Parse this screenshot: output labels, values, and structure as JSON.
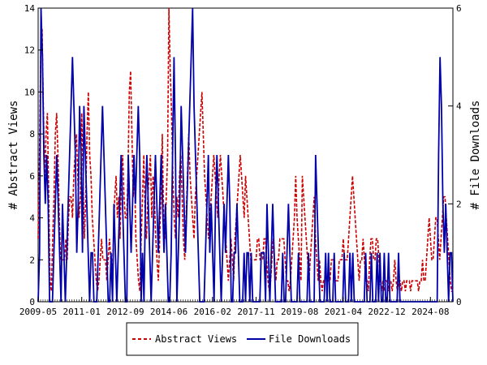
{
  "chart_data": {
    "type": "line",
    "title": "",
    "x_tick_labels": [
      "2009-05",
      "2011-01",
      "2012-09",
      "2014-06",
      "2016-02",
      "2017-11",
      "2019-08",
      "2021-04",
      "2022-12",
      "2024-08"
    ],
    "y_left": {
      "label": "# Abstract Views",
      "ylim": [
        0,
        14
      ],
      "ticks": [
        "0",
        "2",
        "4",
        "6",
        "8",
        "10",
        "12",
        "14"
      ]
    },
    "y_right": {
      "label": "# File Downloads",
      "ylim": [
        0,
        6
      ],
      "ticks": [
        "0",
        "2",
        "4",
        "6"
      ]
    },
    "legend": {
      "placement": "bottom-center"
    },
    "series": [
      {
        "name": "Abstract Views",
        "axis": "left",
        "color": "#cc0000",
        "style": "dashed",
        "values": [
          3,
          7,
          12,
          13,
          9,
          6,
          8,
          9,
          5,
          1,
          0.5,
          3,
          5,
          8,
          9,
          7,
          4,
          2,
          2,
          2,
          2,
          3,
          2,
          4,
          5,
          5,
          4,
          6,
          7,
          8,
          6,
          4,
          5,
          9,
          6,
          3,
          5,
          8,
          10,
          7,
          6,
          4,
          3,
          2,
          1,
          0.5,
          1,
          2,
          3,
          2,
          2,
          2,
          1,
          2,
          3,
          2,
          1,
          3,
          5,
          6,
          4,
          5,
          3,
          6,
          7,
          5,
          4,
          4,
          6,
          10,
          11,
          8,
          5,
          6,
          3,
          2,
          1,
          0.5,
          3,
          5,
          7,
          4,
          3,
          5,
          6,
          7,
          4,
          6,
          5,
          3,
          2,
          1,
          3,
          5,
          8,
          4,
          3,
          5,
          7,
          14,
          11,
          9,
          6,
          4,
          3,
          5,
          4,
          6,
          7,
          5,
          3,
          2,
          4,
          6,
          8,
          6,
          5,
          4,
          3,
          5,
          6,
          7,
          8,
          9,
          10,
          8,
          6,
          5,
          4,
          3,
          4,
          5,
          6,
          7,
          6,
          5,
          4,
          6,
          7,
          6,
          5,
          4,
          3,
          2,
          1,
          2,
          3,
          2,
          1,
          3,
          4,
          5,
          6,
          7,
          6,
          5,
          4,
          6,
          5,
          4,
          3,
          2,
          2,
          2,
          2,
          2,
          3,
          3,
          2,
          2,
          2,
          3,
          3,
          2,
          1,
          0.5,
          1,
          2,
          3,
          2,
          1,
          2,
          2,
          3,
          3,
          3,
          3,
          2,
          1,
          1,
          0.5,
          1,
          2,
          3,
          4,
          6,
          4,
          3,
          2,
          1,
          6,
          5,
          4,
          3,
          2,
          1,
          2,
          3,
          4,
          5,
          3,
          2,
          1,
          2,
          1,
          0.5,
          1,
          1,
          1,
          1,
          1,
          1,
          2,
          2,
          2,
          1,
          1,
          1,
          2,
          2,
          2,
          3,
          2,
          2,
          2,
          3,
          4,
          5,
          6,
          5,
          4,
          3,
          2,
          1,
          2,
          2,
          3,
          2,
          1,
          1,
          0.5,
          2,
          3,
          3,
          2,
          2,
          3,
          3,
          2,
          1,
          0.5,
          1,
          0.5,
          1,
          1,
          0.5,
          1,
          1,
          0.5,
          1,
          2,
          1,
          0.5,
          1,
          1,
          0.5,
          1,
          1,
          0.5,
          1,
          1,
          1,
          0.5,
          1,
          1,
          1,
          1,
          1,
          0.5,
          1,
          1,
          2,
          1,
          1,
          2,
          3,
          4,
          3,
          2,
          2,
          3,
          4,
          4,
          3,
          2,
          3,
          4,
          5,
          5,
          4,
          3,
          2,
          1,
          0.5,
          0.5
        ]
      },
      {
        "name": "File Downloads",
        "axis": "right",
        "color": "#0000aa",
        "style": "solid",
        "values": [
          0,
          1,
          6,
          5,
          3,
          2,
          3,
          2,
          0,
          0,
          0,
          1,
          2,
          3,
          2,
          1,
          0,
          2,
          1,
          0,
          1,
          2,
          3,
          4,
          5,
          4,
          3,
          1,
          2,
          4,
          3,
          1,
          4,
          3,
          2,
          1,
          0,
          1,
          1,
          0,
          0,
          0,
          1,
          2,
          3,
          4,
          3,
          2,
          1,
          0,
          0,
          1,
          0,
          2,
          1,
          0,
          1,
          2,
          3,
          2,
          1,
          0,
          0,
          3,
          2,
          1,
          2,
          3,
          2,
          3,
          4,
          3,
          0,
          1,
          0,
          2,
          3,
          2,
          1,
          0,
          1,
          2,
          3,
          2,
          1,
          2,
          3,
          2,
          1,
          2,
          1,
          0,
          0,
          1,
          3,
          5,
          3,
          0,
          1,
          2,
          4,
          3,
          2,
          1,
          2,
          3,
          4,
          5,
          6,
          4,
          3,
          2,
          1,
          0,
          0,
          0,
          0,
          1,
          2,
          3,
          1,
          2,
          1,
          0,
          2,
          3,
          2,
          1,
          0,
          1,
          2,
          1,
          2,
          3,
          2,
          0,
          0,
          1,
          1,
          2,
          1,
          0,
          0,
          0,
          1,
          0,
          1,
          1,
          0,
          1,
          0,
          0,
          0,
          0,
          0,
          0,
          1,
          1,
          1,
          0,
          2,
          1,
          0,
          1,
          2,
          1,
          0,
          0,
          0,
          0,
          0,
          1,
          0,
          0,
          1,
          2,
          1,
          0,
          0,
          0,
          0,
          0,
          1,
          0,
          0,
          0,
          0,
          0,
          0,
          1,
          0,
          0,
          0,
          0,
          3,
          2,
          1,
          0,
          0,
          0,
          0,
          1,
          0,
          1,
          0,
          0,
          0,
          1,
          0,
          0,
          0,
          0,
          0,
          0,
          1,
          0,
          0,
          0,
          1,
          0,
          1,
          0,
          0,
          0,
          0,
          0,
          0,
          0,
          0,
          1,
          0,
          0,
          0,
          1,
          0,
          0,
          0,
          1,
          0,
          1,
          0,
          0,
          1,
          0,
          0,
          1,
          0,
          0,
          0,
          0,
          0,
          0,
          1,
          0,
          0,
          0,
          0,
          0,
          0,
          0,
          0,
          0,
          0,
          0,
          0,
          0,
          0,
          0,
          0,
          0,
          0,
          0,
          0,
          0,
          0,
          0,
          0,
          0,
          0,
          0,
          3,
          5,
          4,
          2,
          1,
          2,
          1,
          0,
          1,
          1,
          0
        ]
      }
    ]
  }
}
